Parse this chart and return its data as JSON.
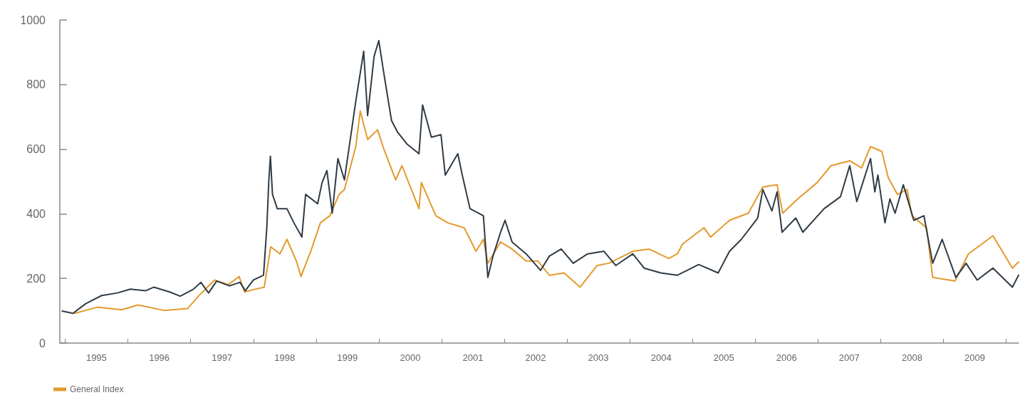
{
  "chart_data": {
    "type": "line",
    "legend": "bottom left",
    "grid": false,
    "marker": "none",
    "line_style": "solid",
    "xlim": [
      "1994-12-01",
      "2010-03-14"
    ],
    "xticks": [
      {
        "value": "1995-01-01",
        "label": null
      },
      {
        "value": "1995-07-02",
        "label": "1995"
      },
      {
        "value": "1996-01-01",
        "label": null
      },
      {
        "value": "1996-07-02",
        "label": "1996"
      },
      {
        "value": "1997-01-01",
        "label": null
      },
      {
        "value": "1997-07-02",
        "label": "1997"
      },
      {
        "value": "1998-01-01",
        "label": null
      },
      {
        "value": "1998-07-02",
        "label": "1998"
      },
      {
        "value": "1999-01-01",
        "label": null
      },
      {
        "value": "1999-07-02",
        "label": "1999"
      },
      {
        "value": "2000-01-01",
        "label": null
      },
      {
        "value": "2000-07-02",
        "label": "2000"
      },
      {
        "value": "2001-01-01",
        "label": null
      },
      {
        "value": "2001-07-02",
        "label": "2001"
      },
      {
        "value": "2002-01-01",
        "label": null
      },
      {
        "value": "2002-07-02",
        "label": "2002"
      },
      {
        "value": "2003-01-01",
        "label": null
      },
      {
        "value": "2003-07-02",
        "label": "2003"
      },
      {
        "value": "2004-01-01",
        "label": null
      },
      {
        "value": "2004-07-02",
        "label": "2004"
      },
      {
        "value": "2005-01-01",
        "label": null
      },
      {
        "value": "2005-07-02",
        "label": "2005"
      },
      {
        "value": "2006-01-01",
        "label": null
      },
      {
        "value": "2006-07-02",
        "label": "2006"
      },
      {
        "value": "2007-01-01",
        "label": null
      },
      {
        "value": "2007-07-02",
        "label": "2007"
      },
      {
        "value": "2008-01-01",
        "label": null
      },
      {
        "value": "2008-07-02",
        "label": "2008"
      },
      {
        "value": "2009-01-01",
        "label": null
      },
      {
        "value": "2009-07-02",
        "label": "2009"
      },
      {
        "value": "2010-01-01",
        "label": null
      }
    ],
    "ylim": [
      0,
      1000
    ],
    "yticks": [
      0,
      200,
      400,
      600,
      800,
      1000
    ],
    "series": [
      {
        "name": "General Index",
        "color": "#e39a2d",
        "x": [
          "1995-02-25",
          "1995-07-08",
          "1995-11-25",
          "1996-03-01",
          "1996-07-31",
          "1996-12-15",
          "1997-02-25",
          "1997-05-20",
          "1997-08-08",
          "1997-10-10",
          "1997-11-10",
          "1998-01-05",
          "1998-03-05",
          "1998-04-12",
          "1998-06-05",
          "1998-07-15",
          "1998-09-08",
          "1998-10-05",
          "1998-12-01",
          "1999-01-26",
          "1999-03-22",
          "1999-05-15",
          "1999-06-15",
          "1999-08-20",
          "1999-09-15",
          "1999-10-28",
          "1999-12-25",
          "2000-01-30",
          "2000-04-08",
          "2000-05-15",
          "2000-08-22",
          "2000-09-05",
          "2000-11-28",
          "2001-02-06",
          "2001-05-12",
          "2001-07-20",
          "2001-09-01",
          "2001-09-27",
          "2001-12-10",
          "2002-02-15",
          "2002-05-08",
          "2002-07-15",
          "2002-09-20",
          "2002-12-15",
          "2003-03-18",
          "2003-06-25",
          "2003-09-01",
          "2004-01-19",
          "2004-04-22",
          "2004-08-15",
          "2004-10-05",
          "2004-11-03",
          "2005-03-08",
          "2005-04-16",
          "2005-08-04",
          "2005-11-22",
          "2006-02-14",
          "2006-05-08",
          "2006-06-10",
          "2006-09-05",
          "2006-12-28",
          "2007-03-18",
          "2007-07-05",
          "2007-09-12",
          "2007-11-03",
          "2008-01-08",
          "2008-02-14",
          "2008-04-08",
          "2008-06-03",
          "2008-07-01",
          "2008-09-24",
          "2008-10-30",
          "2009-03-08",
          "2009-05-26",
          "2009-10-16",
          "2010-02-06",
          "2010-03-14"
        ],
        "values": [
          92,
          111,
          103,
          118,
          101,
          107,
          151,
          195,
          181,
          206,
          158,
          166,
          173,
          298,
          276,
          321,
          254,
          206,
          284,
          372,
          394,
          460,
          475,
          608,
          718,
          630,
          660,
          601,
          505,
          549,
          416,
          497,
          394,
          372,
          357,
          284,
          321,
          247,
          313,
          291,
          254,
          254,
          210,
          217,
          173,
          240,
          247,
          284,
          291,
          262,
          276,
          306,
          357,
          328,
          380,
          402,
          483,
          490,
          402,
          446,
          497,
          549,
          564,
          542,
          608,
          593,
          512,
          460,
          475,
          394,
          357,
          203,
          192,
          276,
          332,
          232,
          251
        ]
      },
      {
        "name": null,
        "color": "#2f3b45",
        "x": [
          "1994-12-15",
          "1995-02-15",
          "1995-05-01",
          "1995-08-01",
          "1995-11-01",
          "1996-01-15",
          "1996-04-15",
          "1996-06-01",
          "1996-09-01",
          "1996-11-01",
          "1997-01-15",
          "1997-03-01",
          "1997-04-15",
          "1997-06-01",
          "1997-08-15",
          "1997-10-15",
          "1997-11-15",
          "1998-01-01",
          "1998-03-01",
          "1998-03-20",
          "1998-04-01",
          "1998-04-10",
          "1998-04-22",
          "1998-05-20",
          "1998-07-15",
          "1998-08-25",
          "1998-10-10",
          "1998-11-01",
          "1999-01-10",
          "1999-02-05",
          "1999-03-05",
          "1999-04-05",
          "1999-05-08",
          "1999-06-15",
          "1999-08-20",
          "1999-10-05",
          "1999-10-28",
          "1999-12-05",
          "2000-01-01",
          "2000-01-30",
          "2000-03-15",
          "2000-04-20",
          "2000-06-15",
          "2000-08-22",
          "2000-09-12",
          "2000-11-02",
          "2000-12-28",
          "2001-01-22",
          "2001-04-05",
          "2001-05-01",
          "2001-06-15",
          "2001-09-01",
          "2001-09-16",
          "2001-09-27",
          "2001-10-27",
          "2001-12-10",
          "2002-01-05",
          "2002-02-15",
          "2002-05-08",
          "2002-07-31",
          "2002-09-20",
          "2002-11-28",
          "2003-02-06",
          "2003-05-01",
          "2003-08-04",
          "2003-10-12",
          "2004-01-19",
          "2004-03-25",
          "2004-07-01",
          "2004-10-05",
          "2005-02-06",
          "2005-05-30",
          "2005-08-04",
          "2005-10-12",
          "2006-01-15",
          "2006-02-14",
          "2006-04-08",
          "2006-05-08",
          "2006-06-06",
          "2006-08-25",
          "2006-10-05",
          "2007-02-06",
          "2007-05-12",
          "2007-07-05",
          "2007-08-15",
          "2007-11-03",
          "2007-11-28",
          "2007-12-16",
          "2008-01-26",
          "2008-02-24",
          "2008-03-25",
          "2008-05-12",
          "2008-07-12",
          "2008-09-09",
          "2008-10-30",
          "2008-12-24",
          "2009-03-14",
          "2009-05-12",
          "2009-07-16",
          "2009-10-16",
          "2010-02-06",
          "2010-03-14"
        ],
        "values": [
          99,
          92,
          122,
          147,
          155,
          167,
          162,
          173,
          158,
          145,
          166,
          188,
          155,
          192,
          177,
          188,
          162,
          195,
          210,
          357,
          505,
          578,
          460,
          416,
          416,
          372,
          328,
          460,
          431,
          497,
          534,
          402,
          571,
          505,
          748,
          903,
          704,
          888,
          936,
          836,
          689,
          652,
          615,
          586,
          737,
          637,
          645,
          520,
          586,
          520,
          416,
          394,
          284,
          203,
          269,
          343,
          380,
          313,
          276,
          225,
          269,
          291,
          247,
          276,
          284,
          240,
          276,
          232,
          217,
          210,
          243,
          217,
          284,
          321,
          387,
          475,
          409,
          468,
          343,
          387,
          343,
          416,
          453,
          549,
          438,
          571,
          468,
          520,
          372,
          446,
          402,
          490,
          380,
          394,
          247,
          321,
          203,
          247,
          195,
          232,
          173,
          210
        ]
      }
    ]
  }
}
